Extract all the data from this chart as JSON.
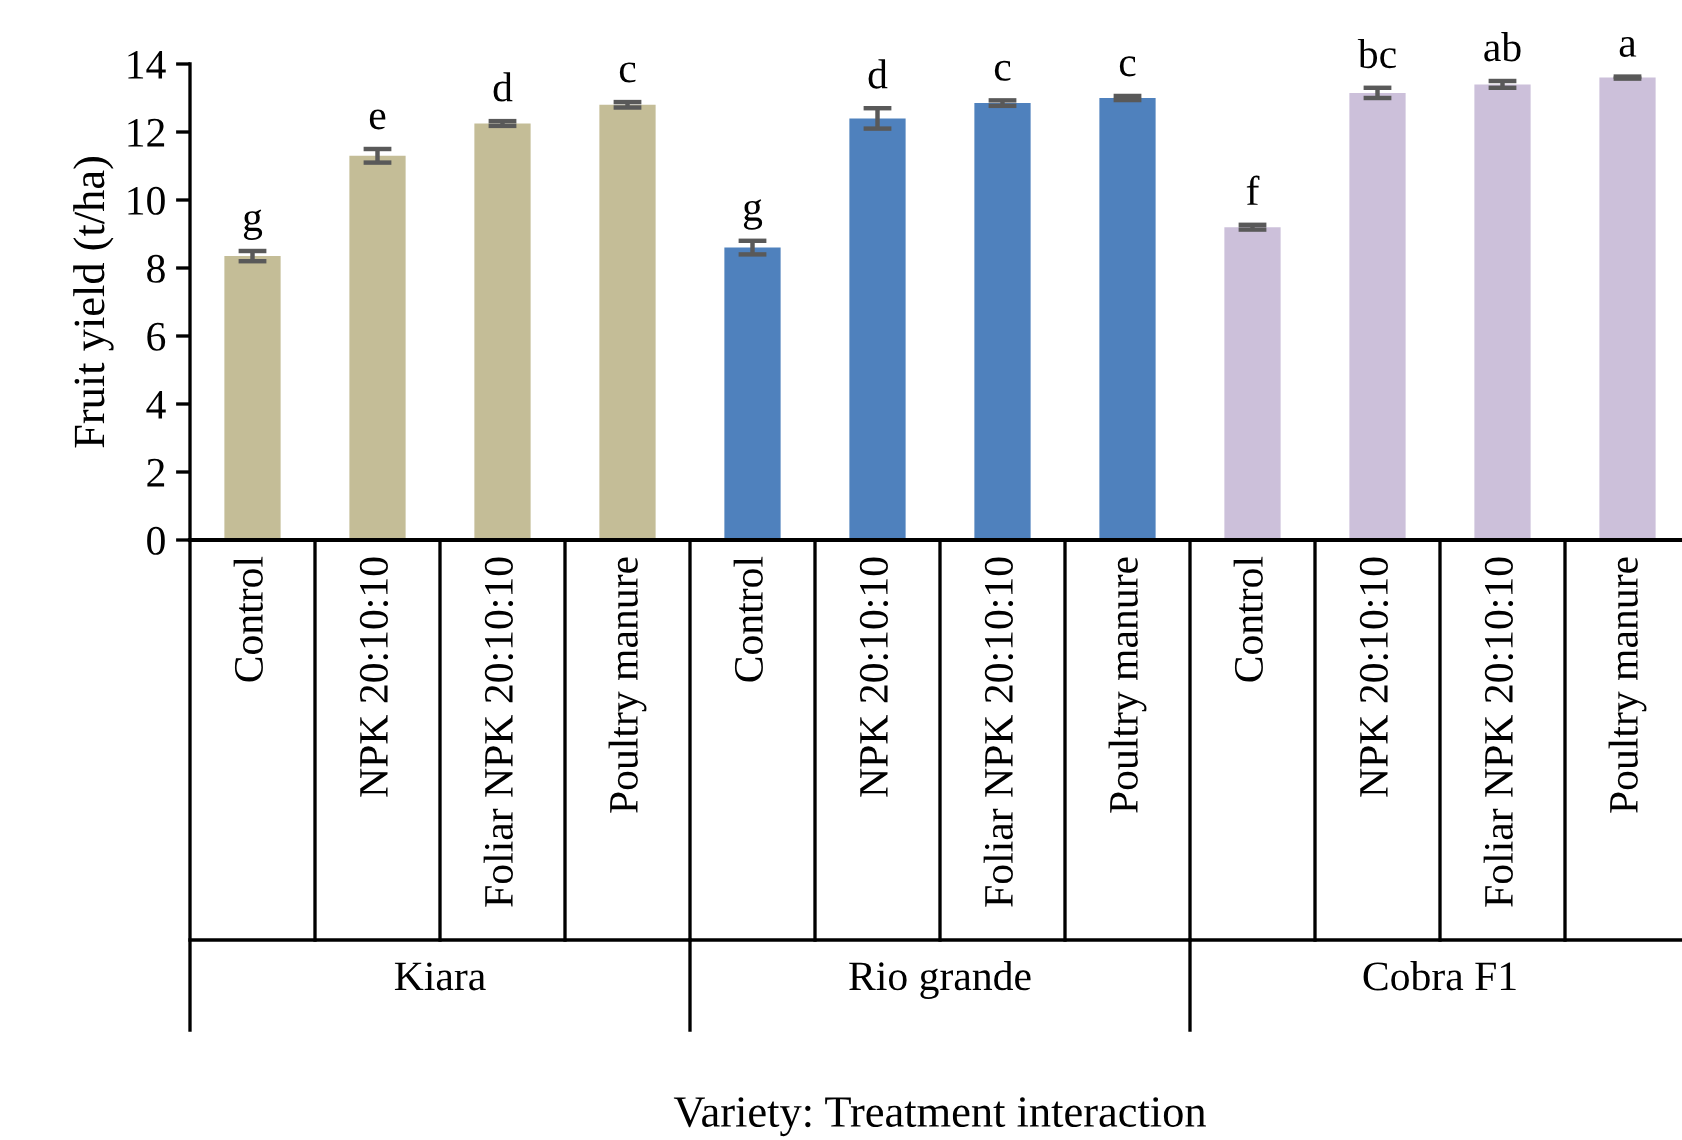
{
  "chart_data": {
    "type": "bar",
    "xlabel": "Variety: Treatment interaction",
    "ylabel": "Fruit yield (t/ha)",
    "categories": [
      "Control",
      "NPK 20:10:10",
      "Foliar NPK 20:10:10",
      "Poultry manure",
      "Control",
      "NPK 20:10:10",
      "Foliar NPK 20:10:10",
      "Poultry manure",
      "Control",
      "NPK 20:10:10",
      "Foliar NPK 20:10:10",
      "Poultry manure"
    ],
    "values": [
      8.35,
      11.3,
      12.25,
      12.8,
      8.6,
      12.4,
      12.85,
      13.0,
      9.2,
      13.15,
      13.4,
      13.6
    ],
    "errors": [
      0.15,
      0.2,
      0.07,
      0.08,
      0.2,
      0.3,
      0.08,
      0.06,
      0.07,
      0.15,
      0.1,
      0.03
    ],
    "value_labels": [
      "g",
      "e",
      "d",
      "c",
      "g",
      "d",
      "c",
      "c",
      "f",
      "bc",
      "ab",
      "a"
    ],
    "colors": [
      "#c4bd97",
      "#c4bd97",
      "#c4bd97",
      "#c4bd97",
      "#4f81bd",
      "#4f81bd",
      "#4f81bd",
      "#4f81bd",
      "#ccc0da",
      "#ccc0da",
      "#ccc0da",
      "#ccc0da"
    ],
    "annotations": [
      "Kiara",
      "Rio grande",
      "Cobra F1"
    ],
    "ylim": [
      0,
      14
    ],
    "yticks": [
      0,
      2,
      4,
      6,
      8,
      10,
      12,
      14
    ],
    "grid": false,
    "legend": false
  }
}
